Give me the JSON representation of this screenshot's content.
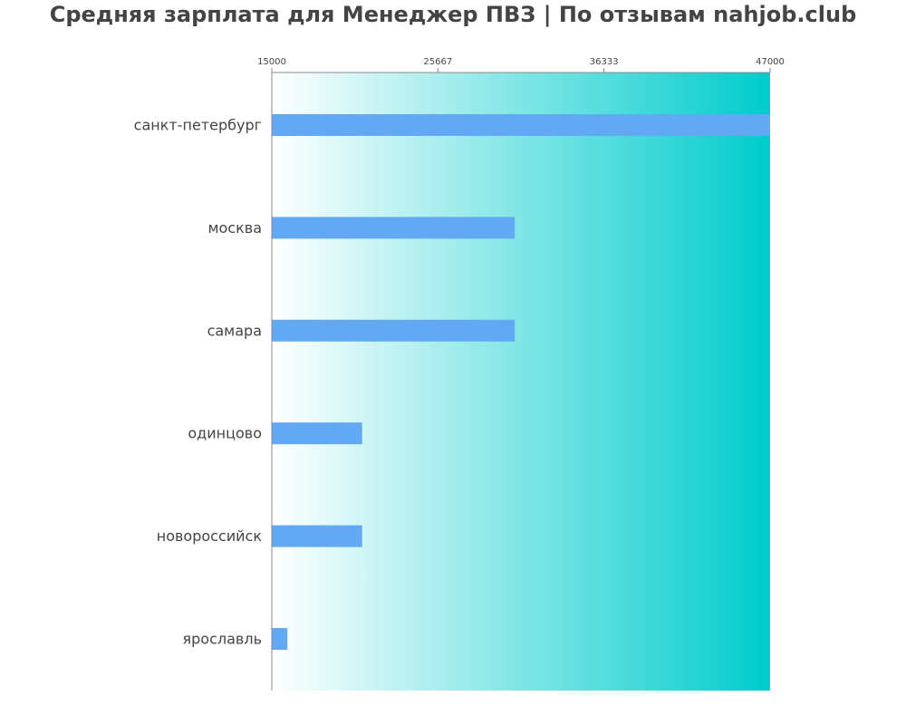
{
  "chart_data": {
    "type": "bar",
    "orientation": "horizontal",
    "title": "Средняя зарплата для Менеджер ПВЗ | По отзывам nahjob.club",
    "xlabel": "",
    "ylabel": "",
    "xlim": [
      15000,
      47000
    ],
    "x_ticks": [
      "15000",
      "25667",
      "36333",
      "47000"
    ],
    "x_tick_values": [
      15000,
      25667,
      36333,
      47000
    ],
    "x_axis_position": "top",
    "grid": false,
    "legend": "none",
    "categories": [
      "санкт-петербург",
      "москва",
      "самара",
      "одинцово",
      "новороссийск",
      "ярославль"
    ],
    "values": [
      47000,
      30600,
      30600,
      20800,
      20800,
      16000
    ],
    "colors": {
      "bar": "#63a8f3",
      "background_gradient_start": "#ffffff",
      "background_gradient_end": "#00cccc",
      "axis": "#888888",
      "text": "#444444"
    }
  }
}
